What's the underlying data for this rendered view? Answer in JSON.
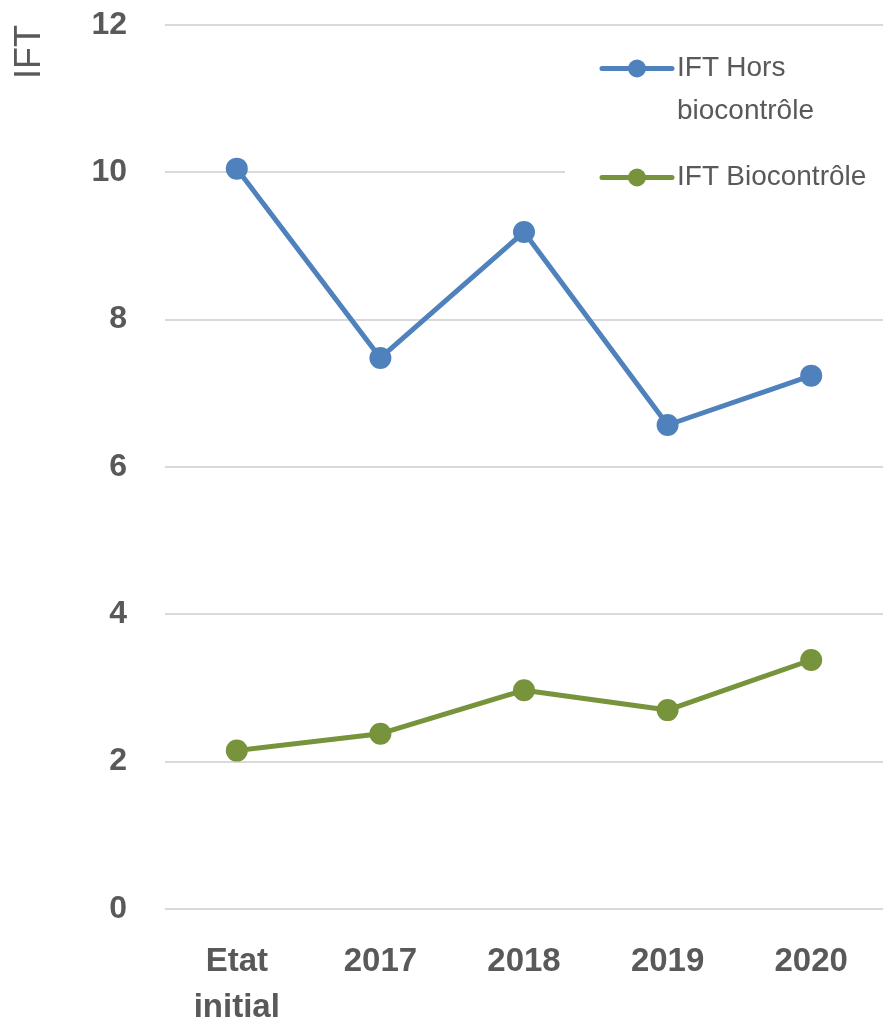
{
  "chart_data": {
    "type": "line",
    "ylabel": "IFT",
    "categories": [
      "Etat initial",
      "2017",
      "2018",
      "2019",
      "2020"
    ],
    "series": [
      {
        "name": "IFT Hors biocontrôle",
        "color": "#4f81bd",
        "values": [
          10.05,
          7.48,
          9.19,
          6.57,
          7.24
        ]
      },
      {
        "name": "IFT Biocontrôle",
        "color": "#77933c",
        "values": [
          2.15,
          2.38,
          2.97,
          2.7,
          3.38
        ]
      }
    ],
    "ylim": [
      0,
      12
    ],
    "yticks": [
      0,
      2,
      4,
      6,
      8,
      10,
      12
    ],
    "grid": "y",
    "legend": "top right",
    "marker": "circle",
    "line_style": "solid"
  }
}
